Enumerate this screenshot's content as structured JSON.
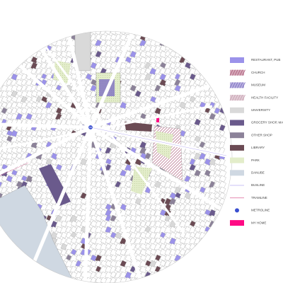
{
  "legend": {
    "items": [
      {
        "label": "RESTAURANT, PUB",
        "color": "#9b92ea",
        "kind": "fill"
      },
      {
        "label": "CHURCH",
        "color": "#b0607e",
        "kind": "hatch"
      },
      {
        "label": "MUSEUM",
        "color": "#7e6fc2",
        "kind": "hatch"
      },
      {
        "label": "HEALTH FACILITY",
        "color": "#c9a2b3",
        "kind": "hatch"
      },
      {
        "label": "UNIVERSITY",
        "color": "#d9d9d9",
        "kind": "fill"
      },
      {
        "label": "GROCERY SHOP, MARKET",
        "color": "#6a5a8c",
        "kind": "fill"
      },
      {
        "label": "OTHER SHOP",
        "color": "#8c8299",
        "kind": "fill"
      },
      {
        "label": "LIBRARY",
        "color": "#6b4b54",
        "kind": "fill"
      },
      {
        "label": "PARK",
        "color": "#e3edca",
        "kind": "fill"
      },
      {
        "label": "DANUBE",
        "color": "#cfd8e2",
        "kind": "fill"
      },
      {
        "label": "BUSLINE",
        "color": "#b7aef0",
        "kind": "line"
      },
      {
        "label": "TRAMLINE",
        "color": "#e07aa6",
        "kind": "line"
      },
      {
        "label": "METROLINE",
        "color": "#3a4fd0",
        "kind": "metro"
      },
      {
        "label": "MY HOME",
        "color": "#ff0a84",
        "kind": "fill"
      }
    ]
  },
  "metro_icon": "M3"
}
